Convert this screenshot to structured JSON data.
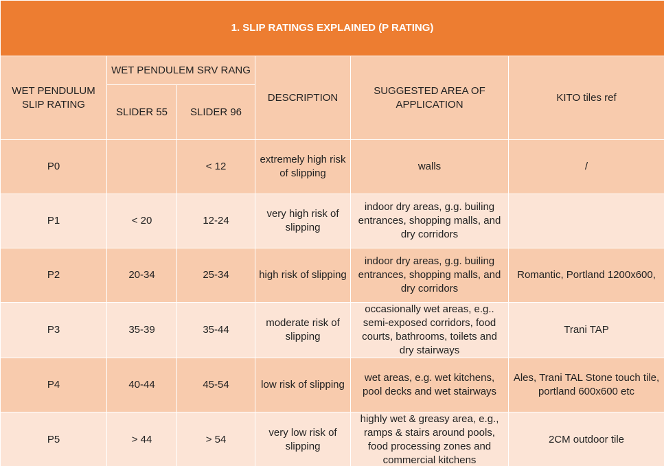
{
  "title": "1. SLIP RATINGS EXPLAINED (P RATING)",
  "header": {
    "rating": "WET PENDULUM SLIP RATING",
    "group": "WET PENDULEM SRV RANG",
    "slider55": "SLIDER 55",
    "slider96": "SLIDER 96",
    "description": "DESCRIPTION",
    "area": "SUGGESTED AREA OF APPLICATION",
    "kito": "KITO tiles  ref"
  },
  "rows": [
    [
      "P0",
      null,
      "< 12",
      "extremely high risk of slipping",
      "walls",
      "/"
    ],
    [
      "P1",
      "< 20",
      "12-24",
      "very high risk of slipping",
      "indoor dry areas, g.g. builing entrances, shopping malls, and dry corridors",
      null
    ],
    [
      "P2",
      "20-34",
      "25-34",
      "high risk of slipping",
      "indoor dry areas, g.g. builing entrances, shopping malls, and dry corridors",
      "Romantic, Portland 1200x600,"
    ],
    [
      "P3",
      "35-39",
      "35-44",
      "moderate risk of slipping",
      "occasionally wet areas, e.g.. semi-exposed corridors, food courts, bathrooms, toilets and dry stairways",
      "Trani TAP"
    ],
    [
      "P4",
      "40-44",
      "45-54",
      "low risk of slipping",
      "wet areas, e.g. wet kitchens, pool decks and wet stairways",
      "Ales, Trani TAL Stone touch tile, portland 600x600 etc"
    ],
    [
      "P5",
      "> 44",
      "> 54",
      "very low risk of slipping",
      "highly wet & greasy area, e.g., ramps & stairs around pools, food processing zones and commercial kitchens",
      "2CM outdoor tile"
    ]
  ]
}
